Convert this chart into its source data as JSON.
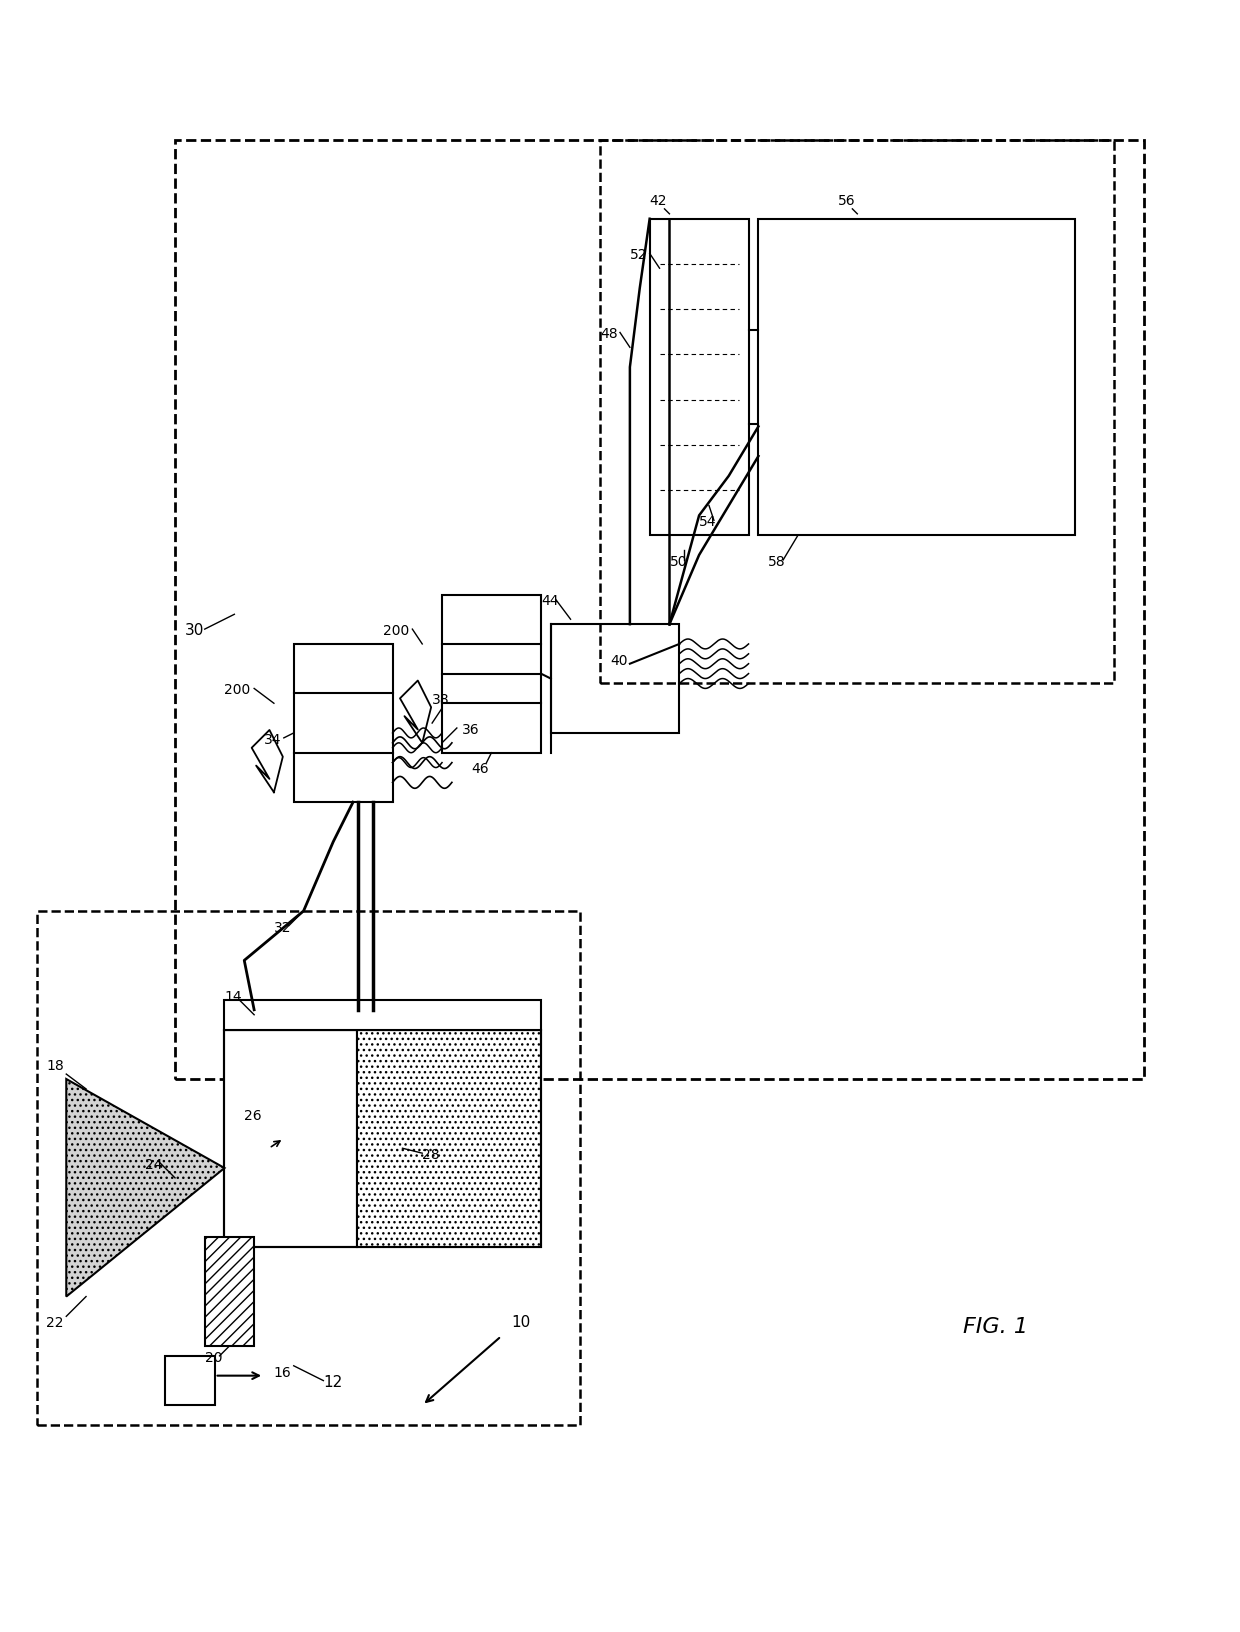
{
  "title": "FIG. 1",
  "bg_color": "#ffffff",
  "line_color": "#000000",
  "figsize": [
    12.4,
    16.33
  ],
  "dpi": 100
}
